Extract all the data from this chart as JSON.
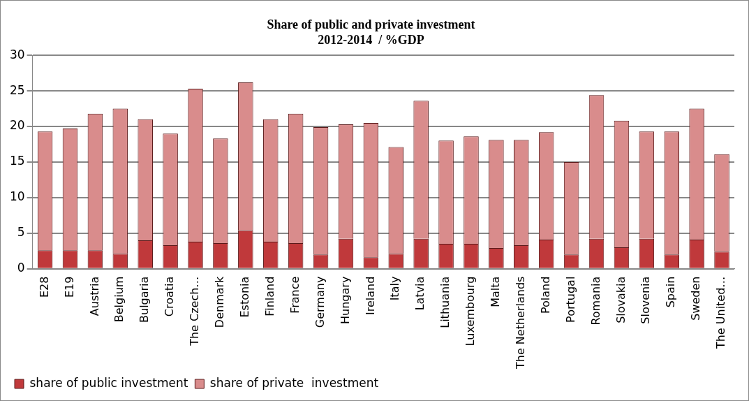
{
  "chart_data": {
    "type": "bar",
    "title": "Share of public and private investment\n2012-2014  / %GDP",
    "categories": [
      "E28",
      "E19",
      "Austria",
      "Belgium",
      "Bulgaria",
      "Croatia",
      "The Czech…",
      "Denmark",
      "Estonia",
      "Finland",
      "France",
      "Germany",
      "Hungary",
      "Ireland",
      "Italy",
      "Latvia",
      "Lithuania",
      "Luxembourg",
      "Malta",
      "The Netherlands",
      "Poland",
      "Portugal",
      "Romania",
      "Slovakia",
      "Slovenia",
      "Spain",
      "Sweden",
      "The United…"
    ],
    "series": [
      {
        "name": "share of public investment",
        "color": "#c0393b",
        "values": [
          2.6,
          2.6,
          2.6,
          2.1,
          4,
          3.3,
          3.8,
          3.6,
          5.4,
          3.8,
          3.6,
          2,
          4.2,
          1.6,
          2.1,
          4.2,
          3.5,
          3.5,
          2.9,
          3.3,
          4.1,
          2,
          4.2,
          3,
          4.2,
          2,
          4.1,
          2.4
        ]
      },
      {
        "name": "share of private  investment",
        "color": "#d98c8c",
        "values": [
          16.7,
          17.1,
          19.2,
          20.4,
          17,
          15.7,
          21.5,
          14.7,
          20.8,
          17.2,
          18.2,
          17.9,
          16.1,
          18.9,
          15,
          19.4,
          14.5,
          15.1,
          15.2,
          14.8,
          15.1,
          13,
          20.2,
          17.8,
          15.1,
          17.3,
          18.4,
          13.7
        ]
      }
    ],
    "stacked": true,
    "ylim": [
      0,
      30
    ],
    "yticks": [
      0,
      5,
      10,
      15,
      20,
      25,
      30
    ],
    "grid": "y",
    "legend": "bottom left"
  }
}
